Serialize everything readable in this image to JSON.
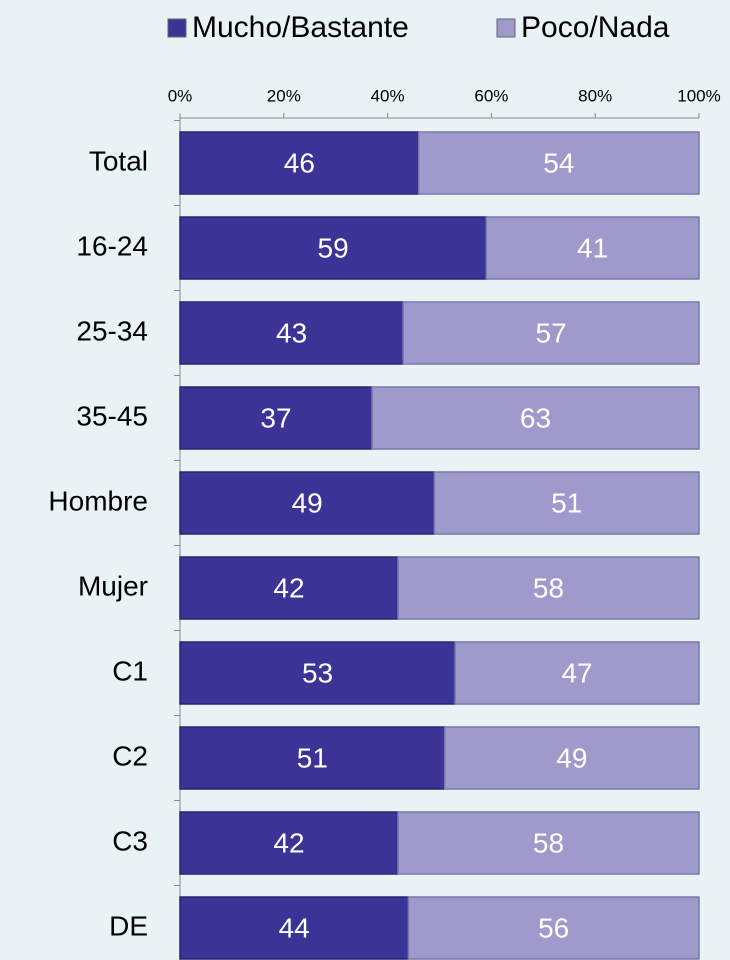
{
  "chart_data": {
    "type": "stacked-bar-horizontal",
    "categories": [
      "Total",
      "16-24",
      "25-34",
      "35-45",
      "Hombre",
      "Mujer",
      "C1",
      "C2",
      "C3",
      "DE"
    ],
    "series": [
      {
        "name": "Mucho/Bastante",
        "color": "#3b3496",
        "values": [
          46,
          59,
          43,
          37,
          49,
          42,
          53,
          51,
          42,
          44
        ]
      },
      {
        "name": "Poco/Nada",
        "color": "#9e9acb",
        "values": [
          54,
          41,
          57,
          63,
          51,
          58,
          47,
          49,
          58,
          56
        ]
      }
    ],
    "xlim": [
      0,
      100
    ],
    "xticks": [
      {
        "value": 0,
        "label": "0%"
      },
      {
        "value": 20,
        "label": "20%"
      },
      {
        "value": 40,
        "label": "40%"
      },
      {
        "value": 60,
        "label": "60%"
      },
      {
        "value": 80,
        "label": "80%"
      },
      {
        "value": 100,
        "label": "100%"
      }
    ],
    "legend": "top"
  }
}
